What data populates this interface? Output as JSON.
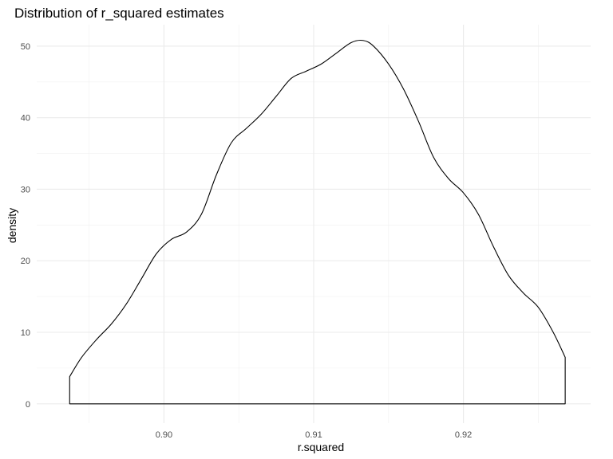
{
  "chart_data": {
    "type": "area",
    "title": "Distribution of r_squared estimates",
    "xlabel": "r.squared",
    "ylabel": "density",
    "xlim": [
      0.8915,
      0.9285
    ],
    "ylim": [
      -2.7,
      53
    ],
    "x_ticks": [
      0.9,
      0.91,
      0.92
    ],
    "x_tick_labels": [
      "0.90",
      "0.91",
      "0.92"
    ],
    "x_minor_ticks": [
      0.895,
      0.905,
      0.915,
      0.925
    ],
    "y_ticks": [
      0,
      10,
      20,
      30,
      40,
      50
    ],
    "y_tick_labels": [
      "0",
      "10",
      "20",
      "30",
      "40",
      "50"
    ],
    "y_minor_ticks": [
      5,
      15,
      25,
      35,
      45
    ],
    "grid": true,
    "legend": "none",
    "line_color": "#000000",
    "fill": "none",
    "series": [
      {
        "x": [
          0.8937,
          0.8945,
          0.8955,
          0.8965,
          0.8975,
          0.8985,
          0.8995,
          0.9005,
          0.9015,
          0.9025,
          0.9035,
          0.9045,
          0.9055,
          0.9065,
          0.9075,
          0.9085,
          0.9095,
          0.9105,
          0.9115,
          0.9125,
          0.9133,
          0.914,
          0.915,
          0.916,
          0.917,
          0.918,
          0.919,
          0.92,
          0.921,
          0.922,
          0.923,
          0.924,
          0.925,
          0.926,
          0.9268
        ],
        "y": [
          3.8,
          6.5,
          9.0,
          11.2,
          14.0,
          17.5,
          21.0,
          23.0,
          24.0,
          26.5,
          32.0,
          36.5,
          38.5,
          40.5,
          43.0,
          45.5,
          46.5,
          47.5,
          49.0,
          50.5,
          50.8,
          50.0,
          47.5,
          44.0,
          39.5,
          34.5,
          31.5,
          29.5,
          26.5,
          22.0,
          18.0,
          15.5,
          13.5,
          10.0,
          6.5
        ]
      }
    ]
  }
}
